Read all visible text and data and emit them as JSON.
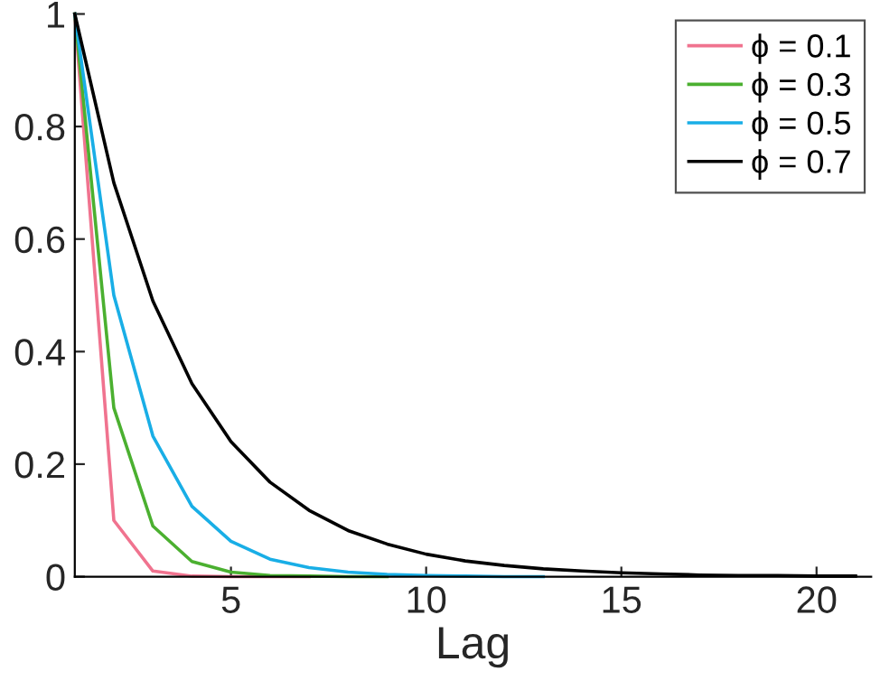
{
  "chart_data": {
    "type": "line",
    "xlabel": "Lag",
    "x": [
      1,
      2,
      3,
      4,
      5,
      6,
      7,
      8,
      9,
      10,
      11,
      12,
      13,
      14,
      15,
      16,
      17,
      18,
      19,
      20,
      21
    ],
    "series": [
      {
        "name": "ϕ = 0.1",
        "color": "#f0738f",
        "values": [
          1,
          0.1,
          0.01,
          0.001,
          0,
          0,
          0,
          null,
          null,
          null,
          null,
          null,
          null,
          null,
          null,
          null,
          null,
          null,
          null,
          null,
          null
        ]
      },
      {
        "name": "ϕ = 0.3",
        "color": "#4bb030",
        "values": [
          1,
          0.3,
          0.09,
          0.027,
          0.008,
          0.002,
          0.001,
          0,
          0,
          null,
          null,
          null,
          null,
          null,
          null,
          null,
          null,
          null,
          null,
          null,
          null
        ]
      },
      {
        "name": "ϕ = 0.5",
        "color": "#19aee6",
        "values": [
          1,
          0.5,
          0.25,
          0.125,
          0.063,
          0.031,
          0.016,
          0.008,
          0.004,
          0.002,
          0.001,
          0,
          0,
          null,
          null,
          null,
          null,
          null,
          null,
          null,
          null
        ]
      },
      {
        "name": "ϕ = 0.7",
        "color": "#000000",
        "values": [
          1,
          0.7,
          0.49,
          0.343,
          0.24,
          0.168,
          0.118,
          0.082,
          0.058,
          0.04,
          0.028,
          0.02,
          0.014,
          0.01,
          0.007,
          0.005,
          0.003,
          0.002,
          0.002,
          0.001,
          0.001
        ]
      }
    ],
    "xlim": [
      1,
      21.4
    ],
    "ylim": [
      0,
      1
    ],
    "xticks": [
      5,
      10,
      15,
      20
    ],
    "yticks": [
      0,
      0.2,
      0.4,
      0.6,
      0.8,
      1
    ],
    "grid": false,
    "legend": "top right",
    "marker": "none",
    "line_style": "solid"
  }
}
